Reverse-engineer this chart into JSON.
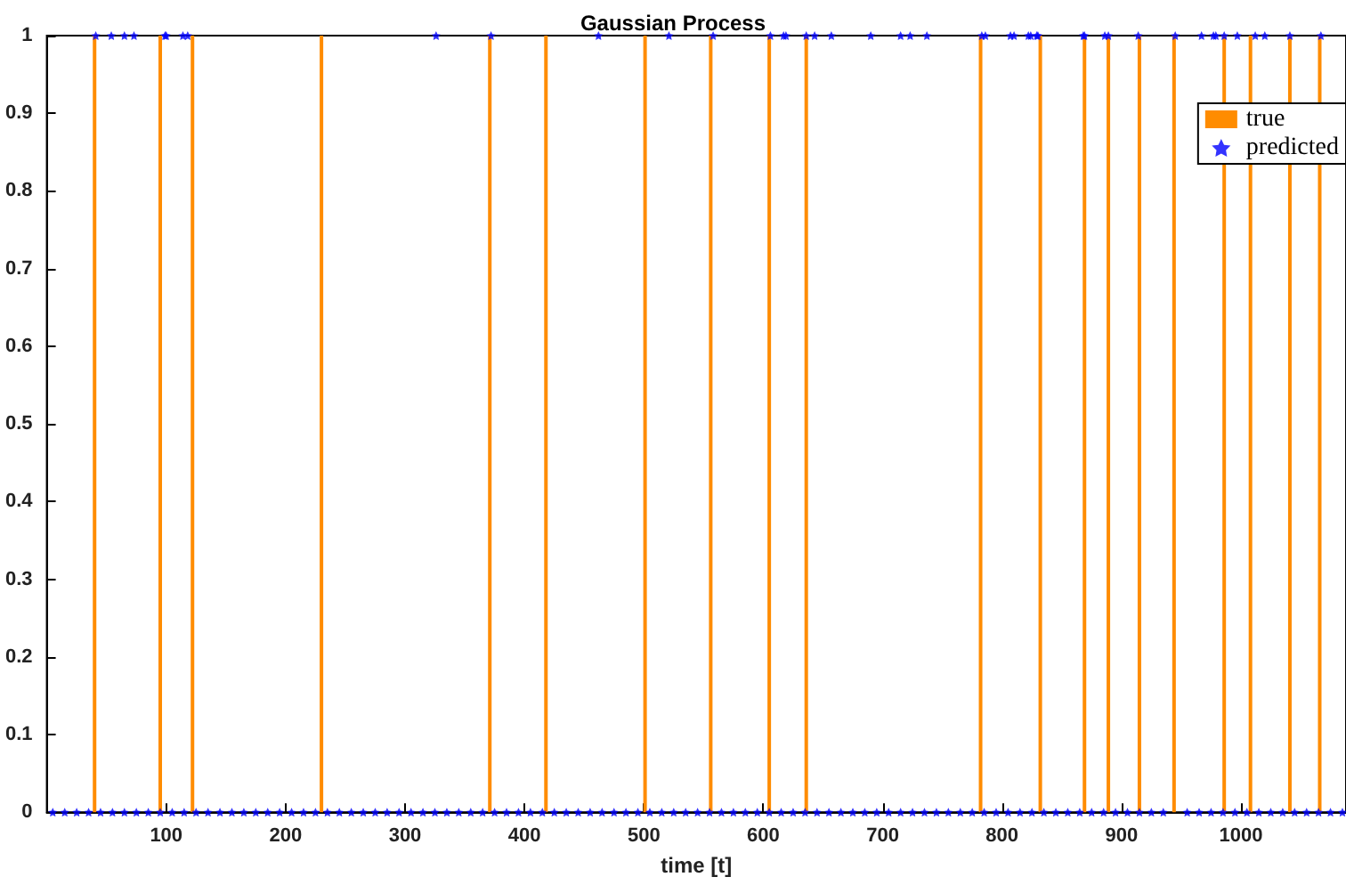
{
  "chart_data": {
    "type": "bar",
    "title": "Gaussian Process",
    "xlabel": "time [t]",
    "xlim": [
      0,
      1088
    ],
    "xticks": [
      100,
      200,
      300,
      400,
      500,
      600,
      700,
      800,
      900,
      1000
    ],
    "ylim": [
      0,
      1
    ],
    "yticks": [
      0,
      0.1,
      0.2,
      0.3,
      0.4,
      0.5,
      0.6,
      0.7,
      0.8,
      0.9,
      1
    ],
    "legend": "top right",
    "grid": false,
    "marker": "star",
    "series": [
      {
        "name": "true",
        "color": "#ff8c00",
        "x": [
          40,
          95,
          122,
          230,
          371,
          418,
          501,
          556,
          605,
          636,
          782,
          832,
          869,
          889,
          915,
          944,
          986,
          1008,
          1041,
          1066
        ],
        "values": [
          1,
          1,
          1,
          1,
          1,
          1,
          1,
          1,
          1,
          1,
          1,
          1,
          1,
          1,
          1,
          1,
          1,
          1,
          1,
          1
        ]
      },
      {
        "name": "predicted",
        "type": "scatter",
        "color": "#0000ff",
        "x": [
          41,
          54,
          65,
          73,
          99,
          100,
          114,
          118,
          326,
          372,
          462,
          521,
          558,
          606,
          617,
          619,
          636,
          643,
          657,
          690,
          715,
          723,
          737,
          783,
          786,
          807,
          810,
          822,
          824,
          829,
          830,
          868,
          869,
          886,
          889,
          914,
          945,
          967,
          977,
          979,
          986,
          997,
          1012,
          1020,
          1041,
          1067,
          5,
          15,
          25,
          35,
          45,
          55,
          65,
          75,
          85,
          95,
          105,
          115,
          125,
          135,
          145,
          155,
          165,
          175,
          185,
          195,
          205,
          215,
          225,
          235,
          245,
          255,
          265,
          275,
          285,
          295,
          305,
          315,
          325,
          335,
          345,
          355,
          365,
          375,
          385,
          395,
          405,
          415,
          425,
          435,
          445,
          455,
          465,
          475,
          485,
          495,
          505,
          515,
          525,
          535,
          545,
          555,
          565,
          575,
          585,
          595,
          605,
          615,
          625,
          635,
          645,
          655,
          665,
          675,
          685,
          695,
          705,
          715,
          725,
          735,
          745,
          755,
          765,
          775,
          785,
          795,
          805,
          815,
          825,
          835,
          845,
          855,
          865,
          875,
          885,
          895,
          905,
          915,
          925,
          935,
          955,
          965,
          975,
          985,
          995,
          1005,
          1015,
          1025,
          1035,
          1045,
          1055,
          1065,
          1075,
          1085
        ],
        "values": [
          1,
          1,
          1,
          1,
          1,
          1,
          1,
          1,
          1,
          1,
          1,
          1,
          1,
          1,
          1,
          1,
          1,
          1,
          1,
          1,
          1,
          1,
          1,
          1,
          1,
          1,
          1,
          1,
          1,
          1,
          1,
          1,
          1,
          1,
          1,
          1,
          1,
          1,
          1,
          1,
          1,
          1,
          1,
          1,
          1,
          1,
          0,
          0,
          0,
          0,
          0,
          0,
          0,
          0,
          0,
          0,
          0,
          0,
          0,
          0,
          0,
          0,
          0,
          0,
          0,
          0,
          0,
          0,
          0,
          0,
          0,
          0,
          0,
          0,
          0,
          0,
          0,
          0,
          0,
          0,
          0,
          0,
          0,
          0,
          0,
          0,
          0,
          0,
          0,
          0,
          0,
          0,
          0,
          0,
          0,
          0,
          0,
          0,
          0,
          0,
          0,
          0,
          0,
          0,
          0,
          0,
          0,
          0,
          0,
          0,
          0,
          0,
          0,
          0,
          0,
          0,
          0,
          0,
          0,
          0,
          0,
          0,
          0,
          0,
          0,
          0,
          0,
          0,
          0,
          0,
          0,
          0,
          0,
          0,
          0,
          0,
          0,
          0,
          0,
          0,
          0,
          0,
          0,
          0,
          0,
          0,
          0,
          0,
          0,
          0,
          0,
          0,
          0,
          0
        ]
      }
    ]
  }
}
